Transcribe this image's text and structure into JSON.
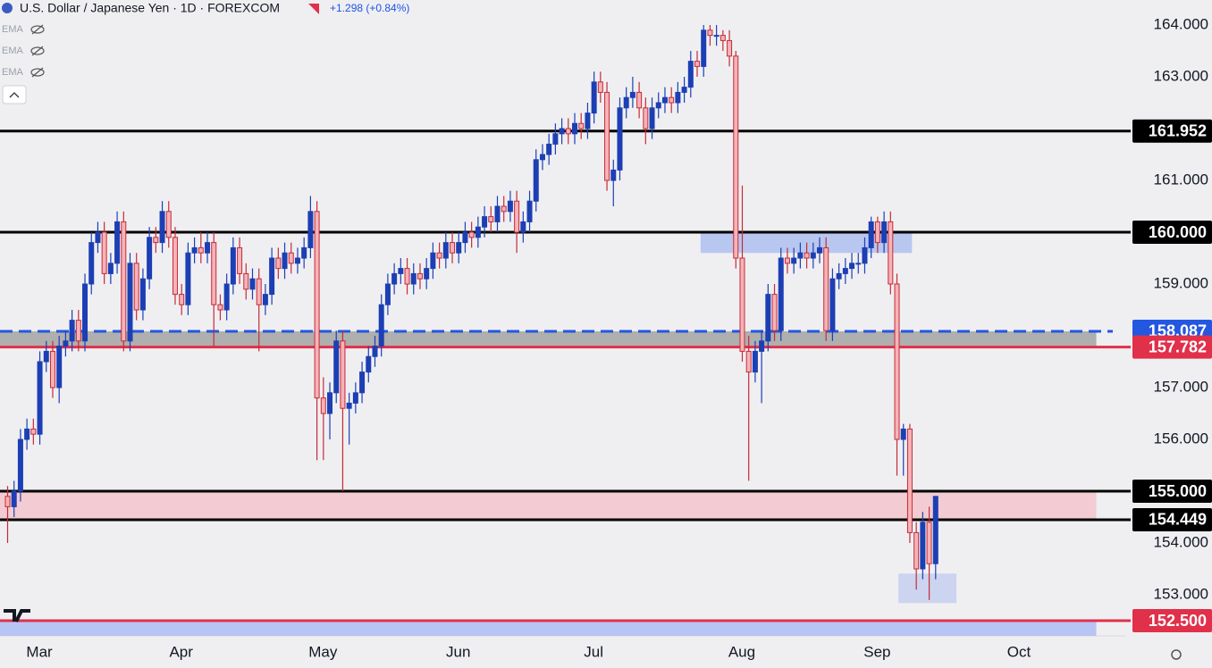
{
  "chart_data": {
    "type": "candlestick",
    "title": "U.S. Dollar / Japanese Yen · 1D · FOREXCOM",
    "change": "+1.298 (+0.84%)",
    "indicators": [
      "EMA",
      "EMA",
      "EMA"
    ],
    "up_color": "#1c3fb4",
    "down_color": "#c62b36",
    "down_fill": "#f5b3b8",
    "xlim": [
      -1.11,
      173.64
    ],
    "xticks": [
      {
        "value": 5,
        "label": "Mar"
      },
      {
        "value": 27,
        "label": "Apr"
      },
      {
        "value": 49,
        "label": "May"
      },
      {
        "value": 70,
        "label": "Jun"
      },
      {
        "value": 91,
        "label": "Jul"
      },
      {
        "value": 114,
        "label": "Aug"
      },
      {
        "value": 135,
        "label": "Sep"
      },
      {
        "value": 157,
        "label": "Oct"
      }
    ],
    "ylim": [
      152.207,
      164.483
    ],
    "yticks": [
      {
        "value": 153,
        "label": "153.000"
      },
      {
        "value": 154,
        "label": "154.000"
      },
      {
        "value": 156,
        "label": "156.000"
      },
      {
        "value": 157,
        "label": "157.000"
      },
      {
        "value": 159,
        "label": "159.000"
      },
      {
        "value": 161,
        "label": "161.000"
      },
      {
        "value": 163,
        "label": "163.000"
      },
      {
        "value": 164,
        "label": "164.000"
      }
    ],
    "grid": false,
    "zones": [
      {
        "y": [
          157.782,
          158.087
        ],
        "x": [
          -1.11,
          169
        ],
        "color": "#a3a3a3"
      },
      {
        "y": [
          154.449,
          155
        ],
        "x": [
          -1.11,
          169
        ],
        "color": "#f2c6cc"
      },
      {
        "y": [
          159.6,
          160
        ],
        "x": [
          107.6,
          140.4
        ],
        "color": "#aebff0"
      },
      {
        "y": [
          152.84,
          153.41
        ],
        "x": [
          138.3,
          147.3
        ],
        "color": "#c5cfee"
      },
      {
        "y": [
          152.207,
          152.5
        ],
        "x": [
          -1.11,
          169
        ],
        "color": "#aebdf5"
      }
    ],
    "levels": [
      {
        "value": 161.952,
        "label": "161.952",
        "color": "#000000",
        "dash": false
      },
      {
        "value": 160,
        "label": "160.000",
        "color": "#000000",
        "dash": false
      },
      {
        "value": 158.087,
        "label": "158.087",
        "color": "#2457e0",
        "dash": true
      },
      {
        "value": 157.782,
        "label": "157.782",
        "color": "#e0304a",
        "dash": false
      },
      {
        "value": 155,
        "label": "155.000",
        "color": "#000000",
        "dash": false
      },
      {
        "value": 154.449,
        "label": "154.449",
        "color": "#000000",
        "dash": false
      },
      {
        "value": 152.5,
        "label": "152.500",
        "color": "#e0304a",
        "dash": false
      }
    ],
    "candles": [
      [
        154.9,
        155.1,
        154.0,
        154.7
      ],
      [
        154.7,
        155.2,
        154.5,
        155.0
      ],
      [
        155.0,
        156.2,
        154.8,
        156.0
      ],
      [
        156.0,
        156.4,
        155.8,
        156.2
      ],
      [
        156.2,
        156.4,
        155.9,
        156.1
      ],
      [
        156.1,
        157.7,
        155.9,
        157.5
      ],
      [
        157.5,
        157.9,
        157.3,
        157.7
      ],
      [
        157.7,
        157.9,
        156.8,
        157.0
      ],
      [
        157.0,
        158.0,
        156.7,
        157.8
      ],
      [
        157.8,
        158.1,
        157.6,
        157.9
      ],
      [
        157.9,
        158.5,
        157.7,
        158.3
      ],
      [
        158.3,
        158.5,
        157.7,
        157.9
      ],
      [
        157.9,
        159.2,
        157.7,
        159.0
      ],
      [
        159.0,
        160.0,
        158.8,
        159.8
      ],
      [
        159.8,
        160.2,
        159.6,
        160.0
      ],
      [
        160.0,
        160.2,
        159.0,
        159.2
      ],
      [
        159.2,
        159.6,
        159.0,
        159.4
      ],
      [
        159.4,
        160.4,
        159.2,
        160.2
      ],
      [
        160.2,
        160.4,
        157.7,
        157.9
      ],
      [
        157.9,
        159.6,
        157.7,
        159.4
      ],
      [
        159.4,
        159.6,
        158.3,
        158.5
      ],
      [
        158.5,
        159.3,
        158.3,
        159.1
      ],
      [
        159.1,
        160.1,
        158.9,
        159.9
      ],
      [
        159.9,
        160.1,
        159.6,
        159.8
      ],
      [
        159.8,
        160.6,
        159.6,
        160.4
      ],
      [
        160.4,
        160.6,
        159.7,
        159.9
      ],
      [
        159.9,
        160.1,
        158.6,
        158.8
      ],
      [
        158.8,
        159.0,
        158.4,
        158.6
      ],
      [
        158.6,
        159.8,
        158.4,
        159.6
      ],
      [
        159.6,
        159.9,
        159.4,
        159.7
      ],
      [
        159.7,
        160.0,
        159.4,
        159.6
      ],
      [
        159.6,
        160.0,
        159.4,
        159.8
      ],
      [
        159.8,
        160.0,
        157.8,
        158.6
      ],
      [
        158.6,
        158.8,
        158.3,
        158.5
      ],
      [
        158.5,
        159.2,
        158.3,
        159.0
      ],
      [
        159.0,
        159.9,
        158.8,
        159.7
      ],
      [
        159.7,
        159.9,
        159.0,
        159.2
      ],
      [
        159.2,
        159.4,
        158.7,
        158.9
      ],
      [
        158.9,
        159.3,
        158.7,
        159.1
      ],
      [
        159.1,
        159.3,
        157.7,
        158.6
      ],
      [
        158.6,
        159.0,
        158.4,
        158.8
      ],
      [
        158.8,
        159.7,
        158.6,
        159.5
      ],
      [
        159.5,
        159.7,
        159.1,
        159.3
      ],
      [
        159.3,
        159.8,
        159.1,
        159.6
      ],
      [
        159.6,
        159.8,
        159.2,
        159.4
      ],
      [
        159.4,
        159.7,
        159.2,
        159.5
      ],
      [
        159.5,
        159.9,
        159.3,
        159.7
      ],
      [
        159.7,
        160.7,
        159.5,
        160.4
      ],
      [
        160.4,
        160.6,
        155.6,
        156.8
      ],
      [
        156.8,
        157.2,
        155.6,
        156.5
      ],
      [
        156.5,
        157.1,
        156.0,
        156.9
      ],
      [
        156.9,
        158.1,
        156.7,
        157.9
      ],
      [
        157.9,
        158.1,
        155.0,
        156.6
      ],
      [
        156.6,
        156.9,
        155.9,
        156.7
      ],
      [
        156.7,
        157.1,
        156.5,
        156.9
      ],
      [
        156.9,
        157.5,
        156.7,
        157.3
      ],
      [
        157.3,
        157.8,
        157.1,
        157.6
      ],
      [
        157.6,
        158.0,
        157.4,
        157.8
      ],
      [
        157.8,
        158.8,
        157.6,
        158.6
      ],
      [
        158.6,
        159.2,
        158.4,
        159.0
      ],
      [
        159.0,
        159.4,
        158.8,
        159.2
      ],
      [
        159.2,
        159.5,
        159.0,
        159.3
      ],
      [
        159.3,
        159.5,
        158.8,
        159.0
      ],
      [
        159.0,
        159.4,
        158.8,
        159.2
      ],
      [
        159.2,
        159.4,
        158.9,
        159.1
      ],
      [
        159.1,
        159.5,
        158.9,
        159.3
      ],
      [
        159.3,
        159.8,
        159.1,
        159.6
      ],
      [
        159.6,
        159.8,
        159.3,
        159.5
      ],
      [
        159.5,
        160.0,
        159.3,
        159.8
      ],
      [
        159.8,
        160.0,
        159.4,
        159.6
      ],
      [
        159.6,
        160.0,
        159.4,
        159.8
      ],
      [
        159.8,
        160.2,
        159.6,
        160.0
      ],
      [
        160.0,
        160.2,
        159.7,
        159.9
      ],
      [
        159.9,
        160.3,
        159.7,
        160.1
      ],
      [
        160.1,
        160.5,
        159.9,
        160.3
      ],
      [
        160.3,
        160.5,
        160.0,
        160.2
      ],
      [
        160.2,
        160.7,
        160.0,
        160.5
      ],
      [
        160.5,
        160.7,
        160.2,
        160.4
      ],
      [
        160.4,
        160.8,
        160.2,
        160.6
      ],
      [
        160.6,
        160.8,
        159.6,
        160.0
      ],
      [
        160.0,
        160.4,
        159.8,
        160.2
      ],
      [
        160.2,
        160.8,
        160.0,
        160.6
      ],
      [
        160.6,
        161.6,
        160.4,
        161.4
      ],
      [
        161.4,
        161.7,
        161.2,
        161.5
      ],
      [
        161.5,
        161.9,
        161.3,
        161.7
      ],
      [
        161.7,
        162.1,
        161.5,
        161.9
      ],
      [
        161.9,
        162.2,
        161.7,
        162.0
      ],
      [
        162.0,
        162.2,
        161.7,
        161.9
      ],
      [
        161.9,
        162.3,
        161.7,
        162.1
      ],
      [
        162.1,
        162.3,
        161.8,
        162.0
      ],
      [
        162.0,
        162.5,
        161.8,
        162.3
      ],
      [
        162.3,
        163.1,
        162.1,
        162.9
      ],
      [
        162.9,
        163.1,
        162.5,
        162.7
      ],
      [
        162.7,
        162.9,
        160.8,
        161.0
      ],
      [
        161.0,
        161.4,
        160.5,
        161.2
      ],
      [
        161.2,
        162.6,
        161.0,
        162.4
      ],
      [
        162.4,
        162.8,
        162.2,
        162.6
      ],
      [
        162.6,
        163.0,
        162.4,
        162.7
      ],
      [
        162.7,
        162.9,
        162.2,
        162.4
      ],
      [
        162.4,
        162.6,
        161.7,
        162.0
      ],
      [
        162.0,
        162.6,
        161.8,
        162.4
      ],
      [
        162.4,
        162.7,
        162.2,
        162.5
      ],
      [
        162.5,
        162.8,
        162.3,
        162.6
      ],
      [
        162.6,
        162.8,
        162.3,
        162.5
      ],
      [
        162.5,
        162.9,
        162.3,
        162.7
      ],
      [
        162.7,
        163.0,
        162.5,
        162.8
      ],
      [
        162.8,
        163.5,
        162.6,
        163.3
      ],
      [
        163.3,
        163.5,
        163.0,
        163.2
      ],
      [
        163.2,
        164.0,
        163.0,
        163.9
      ],
      [
        163.9,
        164.0,
        163.6,
        163.8
      ],
      [
        163.8,
        164.0,
        163.6,
        163.8
      ],
      [
        163.8,
        163.9,
        163.5,
        163.7
      ],
      [
        163.7,
        163.9,
        163.2,
        163.4
      ],
      [
        163.4,
        163.5,
        159.3,
        159.5
      ],
      [
        159.5,
        160.9,
        157.5,
        157.7
      ],
      [
        157.7,
        158.0,
        155.2,
        157.3
      ],
      [
        157.3,
        157.9,
        157.1,
        157.7
      ],
      [
        157.7,
        158.1,
        156.7,
        157.9
      ],
      [
        157.9,
        159.0,
        157.7,
        158.8
      ],
      [
        158.8,
        159.0,
        157.9,
        158.1
      ],
      [
        158.1,
        159.7,
        157.9,
        159.5
      ],
      [
        159.5,
        159.7,
        159.2,
        159.4
      ],
      [
        159.4,
        159.7,
        159.2,
        159.5
      ],
      [
        159.5,
        159.8,
        159.3,
        159.6
      ],
      [
        159.6,
        159.8,
        159.3,
        159.5
      ],
      [
        159.5,
        159.8,
        159.3,
        159.6
      ],
      [
        159.6,
        159.9,
        159.4,
        159.7
      ],
      [
        159.7,
        159.9,
        157.9,
        158.1
      ],
      [
        158.1,
        159.3,
        157.9,
        159.1
      ],
      [
        159.1,
        159.4,
        158.9,
        159.2
      ],
      [
        159.2,
        159.5,
        159.0,
        159.3
      ],
      [
        159.3,
        159.6,
        159.1,
        159.4
      ],
      [
        159.4,
        159.6,
        159.2,
        159.4
      ],
      [
        159.4,
        159.9,
        159.2,
        159.7
      ],
      [
        159.7,
        160.3,
        159.5,
        160.2
      ],
      [
        160.2,
        160.3,
        159.6,
        159.8
      ],
      [
        159.8,
        160.4,
        159.6,
        160.2
      ],
      [
        160.2,
        160.4,
        158.8,
        159.0
      ],
      [
        159.0,
        159.2,
        155.3,
        156.0
      ],
      [
        156.0,
        156.3,
        155.3,
        156.2
      ],
      [
        156.2,
        156.3,
        154.0,
        154.2
      ],
      [
        154.2,
        154.4,
        153.1,
        153.5
      ],
      [
        153.5,
        154.6,
        153.3,
        154.4
      ],
      [
        154.4,
        154.7,
        152.9,
        153.6
      ],
      [
        153.6,
        154.9,
        153.3,
        154.9
      ]
    ]
  }
}
